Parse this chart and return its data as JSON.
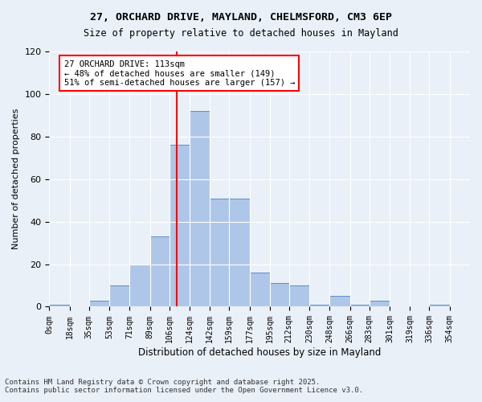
{
  "title_line1": "27, ORCHARD DRIVE, MAYLAND, CHELMSFORD, CM3 6EP",
  "title_line2": "Size of property relative to detached houses in Mayland",
  "xlabel": "Distribution of detached houses by size in Mayland",
  "ylabel": "Number of detached properties",
  "bin_labels": [
    "0sqm",
    "18sqm",
    "35sqm",
    "53sqm",
    "71sqm",
    "89sqm",
    "106sqm",
    "124sqm",
    "142sqm",
    "159sqm",
    "177sqm",
    "195sqm",
    "212sqm",
    "230sqm",
    "248sqm",
    "266sqm",
    "283sqm",
    "301sqm",
    "319sqm",
    "336sqm",
    "354sqm"
  ],
  "bar_heights": [
    1,
    0,
    3,
    10,
    20,
    33,
    76,
    92,
    51,
    51,
    16,
    11,
    10,
    1,
    5,
    1,
    3,
    0,
    0,
    1,
    0
  ],
  "bar_color": "#aec6e8",
  "bar_edge_color": "#5b8fc9",
  "vline_x": 113,
  "vline_color": "red",
  "annotation_text": "27 ORCHARD DRIVE: 113sqm\n← 48% of detached houses are smaller (149)\n51% of semi-detached houses are larger (157) →",
  "annotation_box_color": "white",
  "annotation_box_edge_color": "red",
  "ylim": [
    0,
    120
  ],
  "yticks": [
    0,
    20,
    40,
    60,
    80,
    100,
    120
  ],
  "background_color": "#eaf0f8",
  "footer_line1": "Contains HM Land Registry data © Crown copyright and database right 2025.",
  "footer_line2": "Contains public sector information licensed under the Open Government Licence v3.0.",
  "bin_edges": [
    0,
    18,
    35,
    53,
    71,
    89,
    106,
    124,
    142,
    159,
    177,
    195,
    212,
    230,
    248,
    266,
    283,
    301,
    319,
    336,
    354,
    372
  ]
}
